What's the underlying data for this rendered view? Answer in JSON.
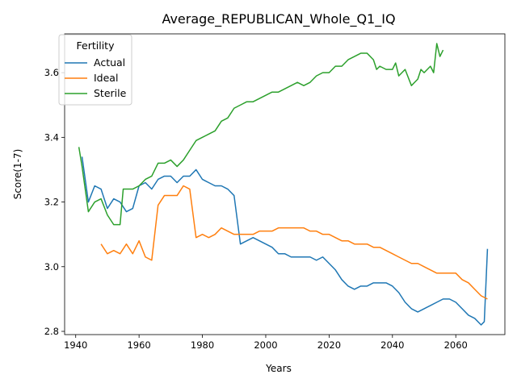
{
  "chart_data": {
    "type": "line",
    "title": "Average_REPUBLICAN_Whole_Q1_IQ",
    "xlabel": "Years",
    "ylabel": "Score(1-7)",
    "xlim": [
      1936.5,
      2075.5
    ],
    "ylim": [
      2.79,
      3.72
    ],
    "xticks": [
      1940,
      1960,
      1980,
      2000,
      2020,
      2040,
      2060
    ],
    "yticks": [
      2.8,
      3.0,
      3.2,
      3.4,
      3.6
    ],
    "grid": false,
    "legend": {
      "title": "Fertility",
      "placement": "top-left"
    },
    "colors": {
      "Actual": "#1f77b4",
      "Ideal": "#ff7f0e",
      "Sterile": "#2ca02c"
    },
    "series": [
      {
        "name": "Actual",
        "x": [
          1942,
          1944,
          1946,
          1948,
          1950,
          1952,
          1954,
          1956,
          1958,
          1960,
          1962,
          1964,
          1966,
          1968,
          1970,
          1972,
          1974,
          1976,
          1978,
          1980,
          1982,
          1984,
          1986,
          1988,
          1990,
          1992,
          1994,
          1996,
          1998,
          2000,
          2002,
          2004,
          2006,
          2008,
          2010,
          2012,
          2014,
          2016,
          2018,
          2020,
          2022,
          2024,
          2026,
          2028,
          2030,
          2032,
          2034,
          2036,
          2038,
          2040,
          2042,
          2044,
          2046,
          2048,
          2050,
          2052,
          2054,
          2056,
          2058,
          2060,
          2062,
          2064,
          2066,
          2068,
          2069,
          2070
        ],
        "y": [
          3.34,
          3.2,
          3.25,
          3.24,
          3.18,
          3.21,
          3.2,
          3.17,
          3.18,
          3.25,
          3.26,
          3.24,
          3.27,
          3.28,
          3.28,
          3.26,
          3.28,
          3.28,
          3.3,
          3.27,
          3.26,
          3.25,
          3.25,
          3.24,
          3.22,
          3.07,
          3.08,
          3.09,
          3.08,
          3.07,
          3.06,
          3.04,
          3.04,
          3.03,
          3.03,
          3.03,
          3.03,
          3.02,
          3.03,
          3.01,
          2.99,
          2.96,
          2.94,
          2.93,
          2.94,
          2.94,
          2.95,
          2.95,
          2.95,
          2.94,
          2.92,
          2.89,
          2.87,
          2.86,
          2.87,
          2.88,
          2.89,
          2.9,
          2.9,
          2.89,
          2.87,
          2.85,
          2.84,
          2.82,
          2.83,
          3.055
        ]
      },
      {
        "name": "Ideal",
        "x": [
          1948,
          1950,
          1952,
          1954,
          1956,
          1958,
          1960,
          1962,
          1964,
          1966,
          1968,
          1970,
          1972,
          1974,
          1976,
          1978,
          1980,
          1982,
          1984,
          1986,
          1988,
          1990,
          1992,
          1994,
          1996,
          1998,
          2000,
          2002,
          2004,
          2006,
          2008,
          2010,
          2012,
          2014,
          2016,
          2018,
          2020,
          2022,
          2024,
          2026,
          2028,
          2030,
          2032,
          2034,
          2036,
          2038,
          2040,
          2042,
          2044,
          2046,
          2048,
          2050,
          2052,
          2054,
          2056,
          2058,
          2060,
          2062,
          2064,
          2066,
          2068,
          2070
        ],
        "y": [
          3.07,
          3.04,
          3.05,
          3.04,
          3.07,
          3.04,
          3.08,
          3.03,
          3.02,
          3.19,
          3.22,
          3.22,
          3.22,
          3.25,
          3.24,
          3.09,
          3.1,
          3.09,
          3.1,
          3.12,
          3.11,
          3.1,
          3.1,
          3.1,
          3.1,
          3.11,
          3.11,
          3.11,
          3.12,
          3.12,
          3.12,
          3.12,
          3.12,
          3.11,
          3.11,
          3.1,
          3.1,
          3.09,
          3.08,
          3.08,
          3.07,
          3.07,
          3.07,
          3.06,
          3.06,
          3.05,
          3.04,
          3.03,
          3.02,
          3.01,
          3.01,
          3.0,
          2.99,
          2.98,
          2.98,
          2.98,
          2.98,
          2.96,
          2.95,
          2.93,
          2.91,
          2.9
        ]
      },
      {
        "name": "Sterile",
        "x": [
          1941,
          1942,
          1943,
          1944,
          1946,
          1948,
          1950,
          1952,
          1954,
          1955,
          1956,
          1958,
          1960,
          1962,
          1964,
          1966,
          1968,
          1970,
          1972,
          1974,
          1976,
          1978,
          1980,
          1982,
          1984,
          1986,
          1988,
          1990,
          1992,
          1994,
          1996,
          1998,
          2000,
          2002,
          2004,
          2006,
          2008,
          2010,
          2012,
          2014,
          2016,
          2018,
          2020,
          2022,
          2024,
          2026,
          2028,
          2030,
          2032,
          2034,
          2035,
          2036,
          2038,
          2040,
          2041,
          2042,
          2044,
          2046,
          2047,
          2048,
          2049,
          2050,
          2052,
          2053,
          2054,
          2055,
          2056
        ],
        "y": [
          3.37,
          3.31,
          3.24,
          3.17,
          3.2,
          3.21,
          3.16,
          3.13,
          3.13,
          3.24,
          3.24,
          3.24,
          3.25,
          3.27,
          3.28,
          3.32,
          3.32,
          3.33,
          3.31,
          3.33,
          3.36,
          3.39,
          3.4,
          3.41,
          3.42,
          3.45,
          3.46,
          3.49,
          3.5,
          3.51,
          3.51,
          3.52,
          3.53,
          3.54,
          3.54,
          3.55,
          3.56,
          3.57,
          3.56,
          3.57,
          3.59,
          3.6,
          3.6,
          3.62,
          3.62,
          3.64,
          3.65,
          3.66,
          3.66,
          3.64,
          3.61,
          3.62,
          3.61,
          3.61,
          3.63,
          3.59,
          3.61,
          3.56,
          3.57,
          3.58,
          3.61,
          3.6,
          3.62,
          3.6,
          3.69,
          3.65,
          3.67
        ]
      }
    ]
  }
}
